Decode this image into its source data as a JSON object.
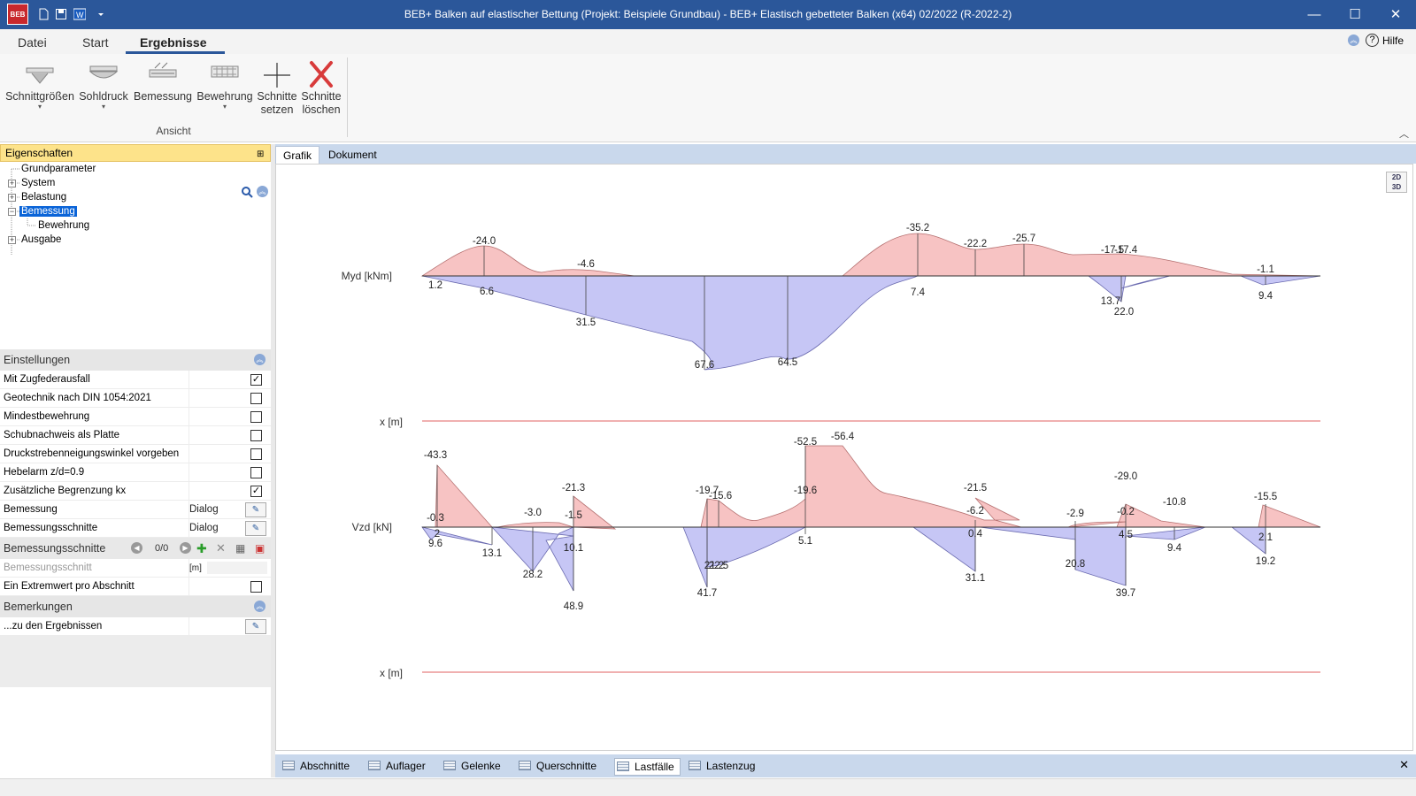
{
  "window": {
    "title": "BEB+ Balken auf elastischer Bettung (Projekt: Beispiele Grundbau) - BEB+ Elastisch gebetteter Balken (x64) 02/2022 (R-2022-2)",
    "logo": "BEB",
    "controls": {
      "minimize": "—",
      "maximize": "☐",
      "close": "✕"
    }
  },
  "menu": {
    "tabs": [
      "Datei",
      "Start",
      "Ergebnisse"
    ],
    "active": "Ergebnisse",
    "help": "Hilfe"
  },
  "ribbon": {
    "buttons": [
      {
        "label": "Schnittgrößen",
        "dropdown": true
      },
      {
        "label": "Sohldruck",
        "dropdown": true
      },
      {
        "label": "Bemessung",
        "dropdown": false
      },
      {
        "label": "Bewehrung",
        "dropdown": true
      },
      {
        "label": "Schnitte setzen",
        "dropdown": false
      },
      {
        "label": "Schnitte löschen",
        "dropdown": false
      }
    ],
    "group": "Ansicht"
  },
  "props": {
    "title": "Eigenschaften",
    "tree": [
      "Grundparameter",
      "System",
      "Belastung",
      "Bemessung",
      "Bewehrung",
      "Ausgabe"
    ],
    "selected": "Bemessung"
  },
  "settings": {
    "title": "Einstellungen",
    "rows": [
      {
        "label": "Mit Zugfederausfall",
        "checked": true
      },
      {
        "label": "Geotechnik nach DIN 1054:2021",
        "checked": false
      },
      {
        "label": "Mindestbewehrung",
        "checked": false
      },
      {
        "label": "Schubnachweis als Platte",
        "checked": false
      },
      {
        "label": "Druckstrebenneigungswinkel vorgeben",
        "checked": false
      },
      {
        "label": "Hebelarm z/d=0.9",
        "checked": false
      },
      {
        "label": "Zusätzliche Begrenzung kx",
        "checked": true
      },
      {
        "label": "Bemessung",
        "value": "Dialog"
      },
      {
        "label": "Bemessungsschnitte",
        "value": "Dialog"
      }
    ],
    "sections_label": "Bemessungsschnitte",
    "sections_counter": "0/0",
    "section_row": {
      "label": "Bemessungsschnitt",
      "unit": "[m]"
    },
    "extreme": {
      "label": "Ein Extremwert pro Abschnitt",
      "checked": false
    }
  },
  "remarks": {
    "title": "Bemerkungen",
    "row": "...zu den Ergebnissen"
  },
  "doc_tabs": [
    "Grafik",
    "Dokument"
  ],
  "doc_active": "Grafik",
  "badge": {
    "top": "2D",
    "bottom": "3D"
  },
  "bottom_tabs": [
    "Abschnitte",
    "Auflager",
    "Gelenke",
    "Querschnitte",
    "Lastfälle",
    "Lastenzug"
  ],
  "bottom_active": "Lastfälle",
  "colors": {
    "negative": "#f7c3c3",
    "positive": "#c6c6f5",
    "axis": "#e06060",
    "accent": "#2b579a"
  },
  "chart_data": [
    {
      "type": "area",
      "ylabel": "Myd [kNm]",
      "xlabel": "x [m]",
      "labels": [
        {
          "text": "1.2",
          "side": "below"
        },
        {
          "text": "-24.0",
          "side": "above"
        },
        {
          "text": "6.6",
          "side": "below"
        },
        {
          "text": "-4.6",
          "side": "above"
        },
        {
          "text": "31.5",
          "side": "below"
        },
        {
          "text": "67.6",
          "side": "below"
        },
        {
          "text": "64.5",
          "side": "below"
        },
        {
          "text": "-35.2",
          "side": "above"
        },
        {
          "text": "7.4",
          "side": "below"
        },
        {
          "text": "-22.2",
          "side": "above"
        },
        {
          "text": "-25.7",
          "side": "above"
        },
        {
          "text": "-17.5",
          "side": "above"
        },
        {
          "text": "-17.4",
          "side": "above"
        },
        {
          "text": "13.7",
          "side": "below"
        },
        {
          "text": "22.0",
          "side": "below"
        },
        {
          "text": "-1.1",
          "side": "above"
        },
        {
          "text": "9.4",
          "side": "below"
        }
      ]
    },
    {
      "type": "area",
      "ylabel": "Vzd [kN]",
      "xlabel": "x [m]",
      "labels": [
        {
          "text": "-43.3",
          "side": "above"
        },
        {
          "text": "-0.3",
          "side": "above"
        },
        {
          "text": "9.6",
          "side": "below"
        },
        {
          "text": "2",
          "side": "below"
        },
        {
          "text": "13.1",
          "side": "below"
        },
        {
          "text": "-3.0",
          "side": "above"
        },
        {
          "text": "28.2",
          "side": "below"
        },
        {
          "text": "-21.3",
          "side": "above"
        },
        {
          "text": "-1.5",
          "side": "above"
        },
        {
          "text": "10.1",
          "side": "below"
        },
        {
          "text": "48.9",
          "side": "below"
        },
        {
          "text": "-19.7",
          "side": "above"
        },
        {
          "text": "-15.6",
          "side": "above"
        },
        {
          "text": "41.7",
          "side": "below"
        },
        {
          "text": "21.2",
          "side": "below"
        },
        {
          "text": "22.5",
          "side": "below"
        },
        {
          "text": "-52.5",
          "side": "above"
        },
        {
          "text": "-56.4",
          "side": "above"
        },
        {
          "text": "-19.6",
          "side": "above"
        },
        {
          "text": "5.1",
          "side": "below"
        },
        {
          "text": "-21.5",
          "side": "above"
        },
        {
          "text": "-6.2",
          "side": "above"
        },
        {
          "text": "0.4",
          "side": "below"
        },
        {
          "text": "31.1",
          "side": "below"
        },
        {
          "text": "-2.9",
          "side": "above"
        },
        {
          "text": "20.8",
          "side": "below"
        },
        {
          "text": "-29.0",
          "side": "above"
        },
        {
          "text": "-0.2",
          "side": "above"
        },
        {
          "text": "4.5",
          "side": "below"
        },
        {
          "text": "39.7",
          "side": "below"
        },
        {
          "text": "-10.8",
          "side": "above"
        },
        {
          "text": "9.4",
          "side": "below"
        },
        {
          "text": "-15.5",
          "side": "above"
        },
        {
          "text": "2.1",
          "side": "below"
        },
        {
          "text": "19.2",
          "side": "below"
        }
      ]
    }
  ]
}
